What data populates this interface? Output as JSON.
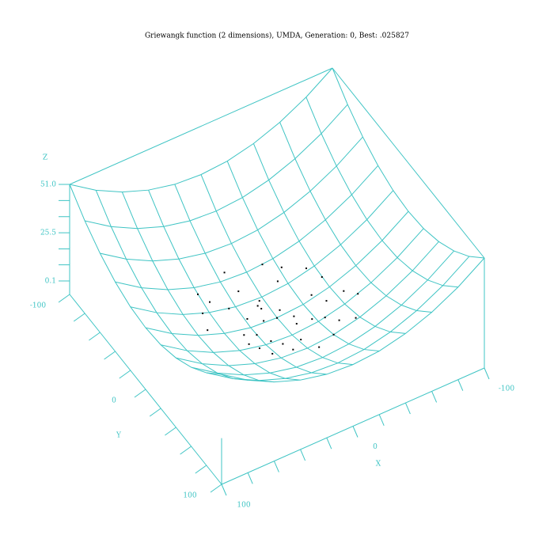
{
  "chart_data": {
    "type": "surface3d",
    "title": "Griewangk function (2 dimensions), UMDA, Generation: 0, Best: .025827",
    "xlabel": "X",
    "ylabel": "Y",
    "zlabel": "Z",
    "color": "#3fc4c4",
    "axis_color": "#3fc4c4",
    "point_color": "#000000",
    "xlim": [
      100,
      -100
    ],
    "ylim": [
      -100,
      100
    ],
    "zlim": [
      -7,
      51
    ],
    "xticks": [
      -100,
      0,
      100
    ],
    "yticks": [
      -100,
      0,
      100
    ],
    "zticks": [
      0.1,
      25.5,
      {
        "value": 51,
        "label": "51.0"
      }
    ],
    "xminorticks": [
      -80,
      -60,
      -40,
      -20,
      20,
      40,
      60,
      80
    ],
    "yminorticks": [
      -80,
      -60,
      -40,
      -20,
      20,
      40,
      60,
      80
    ],
    "zminorticks": [
      8.6,
      17,
      34,
      42.5
    ],
    "x": [
      -100,
      -80,
      -60,
      -40,
      -20,
      0,
      20,
      40,
      60,
      80,
      100
    ],
    "y": [
      -100,
      -80,
      -60,
      -40,
      -20,
      0,
      20,
      40,
      60,
      80,
      100
    ],
    "z": [
      [
        51,
        41.8,
        34.7,
        29.6,
        26.5,
        25.5,
        26.5,
        29.6,
        34.7,
        41.8,
        51
      ],
      [
        41.8,
        32.6,
        25.5,
        20.4,
        17.3,
        16.3,
        17.3,
        20.4,
        25.5,
        32.6,
        41.8
      ],
      [
        34.7,
        25.5,
        18.4,
        13.3,
        10.2,
        9.2,
        10.2,
        13.3,
        18.4,
        25.5,
        34.7
      ],
      [
        29.6,
        20.4,
        13.3,
        8.2,
        5.1,
        4.1,
        5.1,
        8.2,
        13.3,
        20.4,
        29.6
      ],
      [
        26.5,
        17.3,
        10.2,
        5.1,
        2,
        1,
        2,
        5.1,
        10.2,
        17.3,
        26.5
      ],
      [
        25.5,
        16.3,
        9.2,
        4.1,
        1,
        0.1,
        1,
        4.1,
        9.2,
        16.3,
        25.5
      ],
      [
        26.5,
        17.3,
        10.2,
        5.1,
        2,
        1,
        2,
        5.1,
        10.2,
        17.3,
        26.5
      ],
      [
        29.6,
        20.4,
        13.3,
        8.2,
        5.1,
        4.1,
        5.1,
        8.2,
        13.3,
        20.4,
        29.6
      ],
      [
        34.7,
        25.5,
        18.4,
        13.3,
        10.2,
        9.2,
        10.2,
        13.3,
        18.4,
        25.5,
        34.7
      ],
      [
        41.8,
        32.6,
        25.5,
        20.4,
        17.3,
        16.3,
        17.3,
        20.4,
        25.5,
        32.6,
        41.8
      ],
      [
        51,
        41.8,
        34.7,
        29.6,
        26.5,
        25.5,
        26.5,
        29.6,
        34.7,
        41.8,
        51
      ]
    ],
    "points": {
      "x": [
        -10,
        5,
        20,
        -25,
        12,
        -5,
        30,
        -40,
        8,
        -15,
        25,
        -30,
        0,
        15,
        -20,
        40,
        -8,
        18,
        -35,
        10,
        -12,
        28,
        -45,
        3,
        22,
        -18,
        35,
        -28,
        6,
        -2,
        50,
        -50,
        14,
        -33,
        26,
        -6,
        45,
        -22,
        9,
        -38
      ],
      "y": [
        5,
        -12,
        8,
        20,
        -30,
        -5,
        15,
        -10,
        35,
        -25,
        -20,
        30,
        0,
        18,
        40,
        -35,
        12,
        -8,
        -22,
        25,
        -40,
        5,
        10,
        -18,
        32,
        15,
        -28,
        -3,
        -15,
        28,
        -5,
        20,
        -45,
        8,
        22,
        45,
        -20,
        -32,
        -2,
        38
      ],
      "z": [
        0.3,
        0.4,
        1.2,
        2.6,
        2.7,
        0.1,
        2.9,
        4.3,
        3.3,
        2.2,
        2.6,
        4.6,
        0,
        1.4,
        5.1,
        7.2,
        0.5,
        1,
        4.4,
        1.9,
        4.5,
        2.1,
        5.4,
        0.9,
        3.9,
        1.4,
        5.1,
        2,
        0.7,
        2,
        6.4,
        7.4,
        5.7,
        2.9,
        3,
        5.3,
        6.2,
        3.9,
        0.2,
        7.4
      ]
    }
  }
}
